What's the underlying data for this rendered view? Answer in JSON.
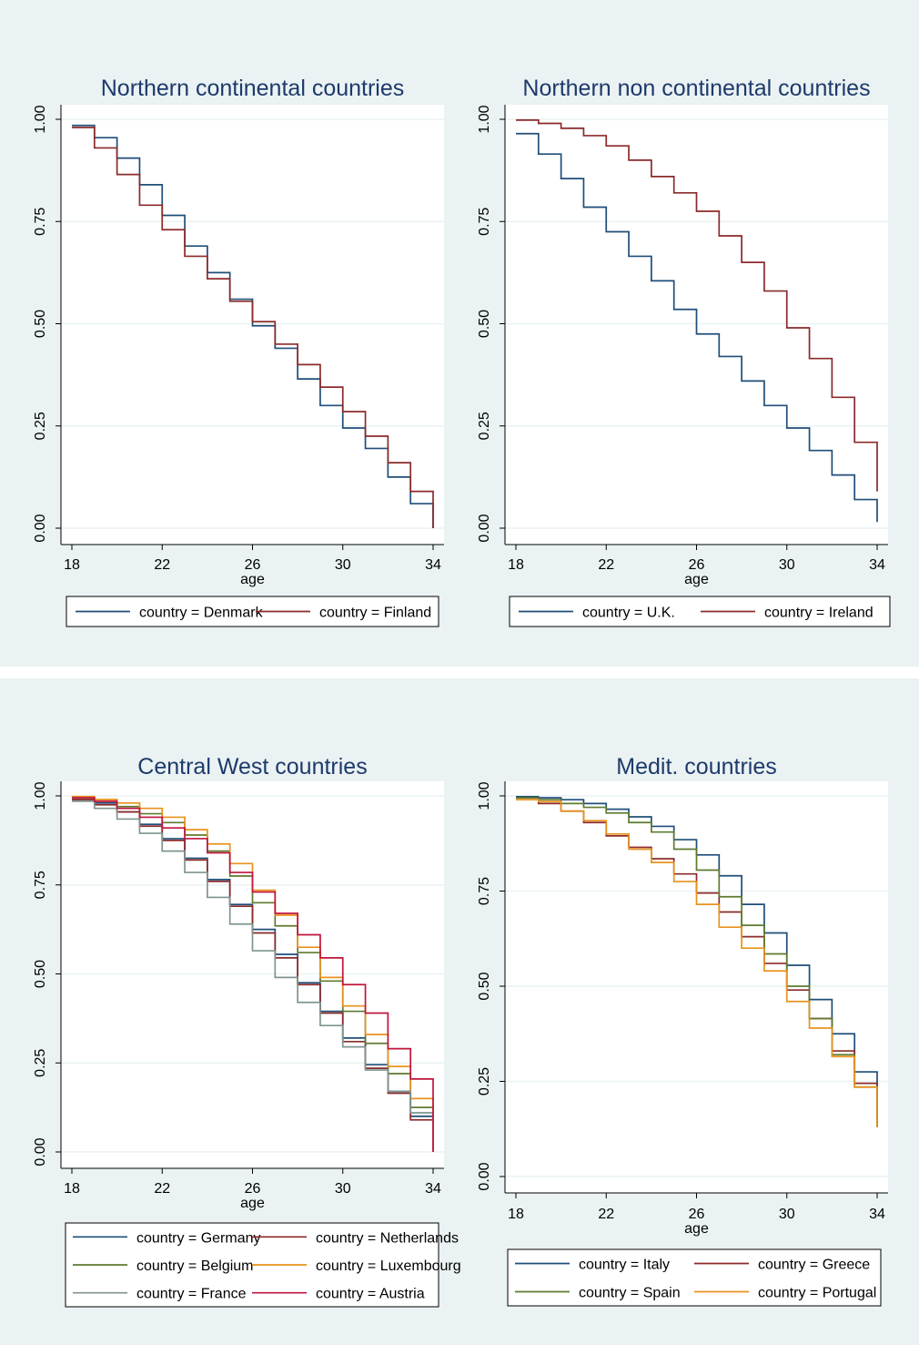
{
  "chart_data": [
    {
      "type": "line",
      "step": true,
      "title": "Northern continental countries",
      "xlabel": "age",
      "ylabel": "",
      "xlim": [
        18,
        34
      ],
      "ylim": [
        0,
        1
      ],
      "xticks": [
        "18",
        "22",
        "26",
        "30",
        "34"
      ],
      "yticks": [
        "0.00",
        "0.25",
        "0.50",
        "0.75",
        "1.00"
      ],
      "grid": true,
      "legend_position": "bottom",
      "legend_columns": 2,
      "x": [
        18,
        19,
        20,
        21,
        22,
        23,
        24,
        25,
        26,
        27,
        28,
        29,
        30,
        31,
        32,
        33,
        34
      ],
      "series": [
        {
          "name": "country = Denmark",
          "color": "#1f4e79",
          "values": [
            0.985,
            0.955,
            0.905,
            0.84,
            0.765,
            0.69,
            0.625,
            0.56,
            0.495,
            0.44,
            0.365,
            0.3,
            0.245,
            0.195,
            0.125,
            0.06,
            0.0
          ]
        },
        {
          "name": "country = Finland",
          "color": "#8b2a2a",
          "values": [
            0.98,
            0.93,
            0.865,
            0.79,
            0.73,
            0.665,
            0.61,
            0.555,
            0.505,
            0.45,
            0.4,
            0.345,
            0.285,
            0.225,
            0.16,
            0.09,
            0.0
          ]
        }
      ]
    },
    {
      "type": "line",
      "step": true,
      "title": "Northern non continental countries",
      "xlabel": "age",
      "ylabel": "",
      "xlim": [
        18,
        34
      ],
      "ylim": [
        0,
        1
      ],
      "xticks": [
        "18",
        "22",
        "26",
        "30",
        "34"
      ],
      "yticks": [
        "0.00",
        "0.25",
        "0.50",
        "0.75",
        "1.00"
      ],
      "grid": true,
      "legend_position": "bottom",
      "legend_columns": 2,
      "x": [
        18,
        19,
        20,
        21,
        22,
        23,
        24,
        25,
        26,
        27,
        28,
        29,
        30,
        31,
        32,
        33,
        34
      ],
      "series": [
        {
          "name": "country = U.K.",
          "color": "#1f4e79",
          "values": [
            0.965,
            0.915,
            0.855,
            0.785,
            0.725,
            0.665,
            0.605,
            0.535,
            0.475,
            0.42,
            0.36,
            0.3,
            0.245,
            0.19,
            0.13,
            0.07,
            0.015
          ]
        },
        {
          "name": "country = Ireland",
          "color": "#8b2a2a",
          "values": [
            0.998,
            0.99,
            0.978,
            0.96,
            0.935,
            0.9,
            0.86,
            0.82,
            0.775,
            0.715,
            0.65,
            0.58,
            0.49,
            0.415,
            0.32,
            0.21,
            0.09
          ]
        }
      ]
    },
    {
      "type": "line",
      "step": true,
      "title": "Central West countries",
      "xlabel": "age",
      "ylabel": "",
      "xlim": [
        18,
        34
      ],
      "ylim": [
        0,
        1
      ],
      "xticks": [
        "18",
        "22",
        "26",
        "30",
        "34"
      ],
      "yticks": [
        "0.00",
        "0.25",
        "0.50",
        "0.75",
        "1.00"
      ],
      "grid": true,
      "legend_position": "bottom",
      "legend_columns": 2,
      "x": [
        18,
        19,
        20,
        21,
        22,
        23,
        24,
        25,
        26,
        27,
        28,
        29,
        30,
        31,
        32,
        33,
        34
      ],
      "series": [
        {
          "name": "country = Germany",
          "color": "#1f4e79",
          "values": [
            0.99,
            0.98,
            0.955,
            0.92,
            0.88,
            0.825,
            0.765,
            0.695,
            0.625,
            0.555,
            0.475,
            0.395,
            0.32,
            0.245,
            0.17,
            0.1,
            0.0
          ]
        },
        {
          "name": "country = Netherlands",
          "color": "#8b2a2a",
          "values": [
            0.99,
            0.975,
            0.955,
            0.915,
            0.875,
            0.82,
            0.76,
            0.69,
            0.615,
            0.545,
            0.47,
            0.39,
            0.31,
            0.235,
            0.165,
            0.09,
            0.0
          ]
        },
        {
          "name": "country = Belgium",
          "color": "#5e7a2e",
          "values": [
            0.995,
            0.985,
            0.97,
            0.95,
            0.925,
            0.89,
            0.845,
            0.775,
            0.7,
            0.635,
            0.56,
            0.48,
            0.395,
            0.305,
            0.22,
            0.125,
            0.0
          ]
        },
        {
          "name": "country = Luxembourg",
          "color": "#e8921c",
          "values": [
            0.998,
            0.99,
            0.98,
            0.965,
            0.94,
            0.905,
            0.865,
            0.81,
            0.735,
            0.665,
            0.575,
            0.49,
            0.41,
            0.33,
            0.24,
            0.15,
            0.0
          ]
        },
        {
          "name": "country = France",
          "color": "#7f958f",
          "values": [
            0.985,
            0.965,
            0.935,
            0.895,
            0.845,
            0.785,
            0.715,
            0.64,
            0.565,
            0.49,
            0.42,
            0.355,
            0.295,
            0.23,
            0.17,
            0.11,
            0.0
          ]
        },
        {
          "name": "country = Austria",
          "color": "#c0143c",
          "values": [
            0.995,
            0.985,
            0.965,
            0.94,
            0.91,
            0.88,
            0.84,
            0.785,
            0.73,
            0.67,
            0.61,
            0.545,
            0.47,
            0.39,
            0.29,
            0.205,
            0.0
          ]
        }
      ]
    },
    {
      "type": "line",
      "step": true,
      "title": "Medit. countries",
      "xlabel": "age",
      "ylabel": "",
      "xlim": [
        18,
        34
      ],
      "ylim": [
        0,
        1
      ],
      "xticks": [
        "18",
        "22",
        "26",
        "30",
        "34"
      ],
      "yticks": [
        "0.00",
        "0.25",
        "0.50",
        "0.75",
        "1.00"
      ],
      "grid": true,
      "legend_position": "bottom",
      "legend_columns": 2,
      "x": [
        18,
        19,
        20,
        21,
        22,
        23,
        24,
        25,
        26,
        27,
        28,
        29,
        30,
        31,
        32,
        33,
        34
      ],
      "series": [
        {
          "name": "country = Italy",
          "color": "#1f4e79",
          "values": [
            0.998,
            0.995,
            0.99,
            0.98,
            0.965,
            0.945,
            0.92,
            0.885,
            0.845,
            0.79,
            0.715,
            0.64,
            0.555,
            0.465,
            0.375,
            0.275,
            0.13
          ]
        },
        {
          "name": "country = Greece",
          "color": "#8b2a2a",
          "values": [
            0.99,
            0.98,
            0.96,
            0.93,
            0.895,
            0.865,
            0.835,
            0.795,
            0.745,
            0.695,
            0.63,
            0.56,
            0.49,
            0.415,
            0.33,
            0.245,
            0.13
          ]
        },
        {
          "name": "country = Spain",
          "color": "#5e7a2e",
          "values": [
            0.995,
            0.99,
            0.98,
            0.97,
            0.955,
            0.93,
            0.905,
            0.86,
            0.805,
            0.735,
            0.66,
            0.585,
            0.5,
            0.415,
            0.32,
            0.235,
            0.13
          ]
        },
        {
          "name": "country = Portugal",
          "color": "#e8921c",
          "values": [
            0.99,
            0.985,
            0.96,
            0.935,
            0.9,
            0.86,
            0.825,
            0.775,
            0.715,
            0.655,
            0.6,
            0.54,
            0.46,
            0.39,
            0.315,
            0.235,
            0.13
          ]
        }
      ]
    }
  ]
}
